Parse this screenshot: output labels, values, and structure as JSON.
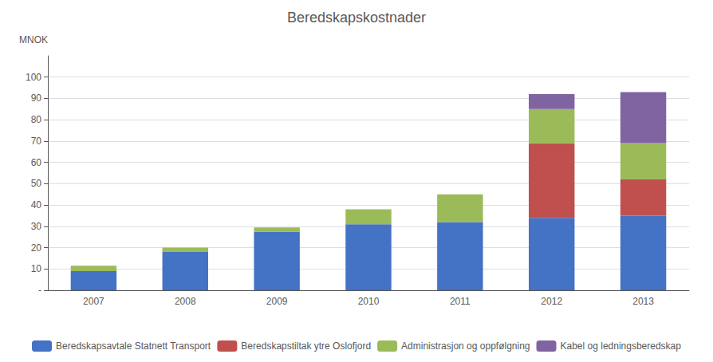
{
  "chart_data": {
    "type": "bar",
    "title": "Beredskapskostnader",
    "ylabel": "MNOK",
    "categories": [
      "2007",
      "2008",
      "2009",
      "2010",
      "2011",
      "2012",
      "2013"
    ],
    "series": [
      {
        "name": "Beredskapsavtale Statnett Transport",
        "color": "#4472C4",
        "values": [
          9.0,
          18.0,
          27.5,
          31.0,
          32.0,
          34.0,
          35.0
        ]
      },
      {
        "name": "Beredskapstiltak ytre Oslofjord",
        "color": "#C0504D",
        "values": [
          0.0,
          0.0,
          0.0,
          0.0,
          0.0,
          35.0,
          17.0
        ]
      },
      {
        "name": "Administrasjon og oppfølgning",
        "color": "#9BBB59",
        "values": [
          2.5,
          2.0,
          2.0,
          7.0,
          13.0,
          16.0,
          17.0
        ]
      },
      {
        "name": "Kabel og ledningsberedskap",
        "color": "#8064A2",
        "values": [
          0.0,
          0.0,
          0.0,
          0.0,
          0.0,
          7.0,
          24.0
        ]
      }
    ],
    "stacked": true,
    "ylim": [
      0,
      110
    ],
    "yticks": [
      {
        "value": 0,
        "label": "-"
      },
      10,
      20,
      30,
      40,
      50,
      60,
      70,
      80,
      90,
      100
    ],
    "grid": true,
    "legend": "bottom"
  }
}
